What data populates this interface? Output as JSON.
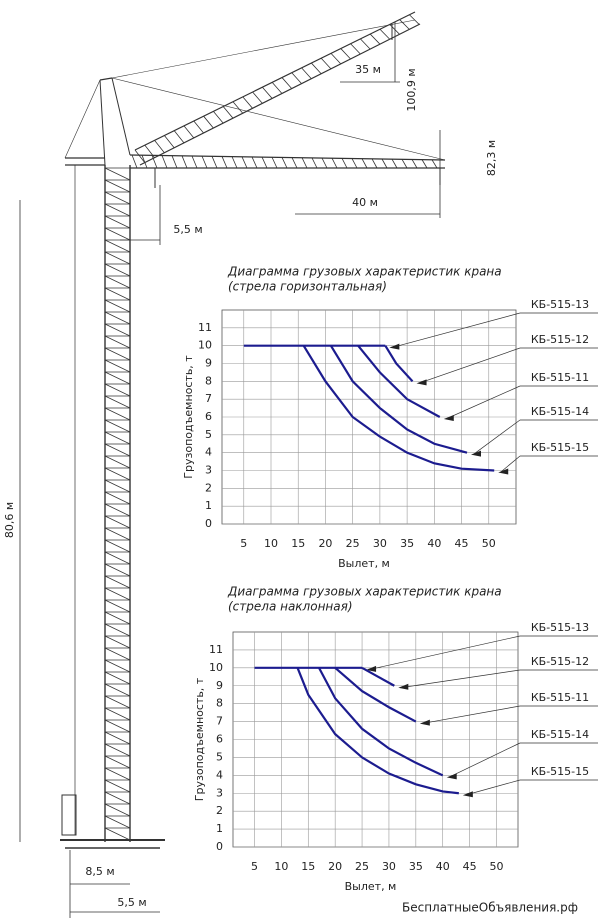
{
  "chart_data": [
    {
      "type": "line",
      "title": "Диаграмма грузовых характеристик крана",
      "subtitle": "(стрела горизонтальная)",
      "xlabel": "Вылет, м",
      "ylabel": "Грузоподъемность, т",
      "xlim": [
        1,
        55
      ],
      "ylim": [
        0,
        12
      ],
      "xticks": [
        5,
        10,
        15,
        20,
        25,
        30,
        35,
        40,
        45,
        50
      ],
      "yticks": [
        0,
        1,
        2,
        3,
        4,
        5,
        6,
        7,
        8,
        9,
        10,
        11
      ],
      "grid": true,
      "series": [
        {
          "name": "КБ-515-13",
          "color": "#1c1c8f",
          "x": [
            5,
            31
          ],
          "values": [
            10,
            10
          ]
        },
        {
          "name": "КБ-515-12",
          "color": "#1c1c8f",
          "x": [
            31,
            33,
            36
          ],
          "values": [
            10,
            9,
            8
          ]
        },
        {
          "name": "КБ-515-11",
          "color": "#1c1c8f",
          "x": [
            26,
            30,
            35,
            41
          ],
          "values": [
            10,
            8.5,
            7,
            6
          ]
        },
        {
          "name": "КБ-515-14",
          "color": "#1c1c8f",
          "x": [
            21,
            25,
            30,
            35,
            40,
            46
          ],
          "values": [
            10,
            8,
            6.5,
            5.3,
            4.5,
            4
          ]
        },
        {
          "name": "КБ-515-15",
          "color": "#1c1c8f",
          "x": [
            16,
            20,
            25,
            30,
            35,
            40,
            45,
            51
          ],
          "values": [
            10,
            8,
            6,
            4.9,
            4,
            3.4,
            3.1,
            3
          ]
        }
      ]
    },
    {
      "type": "line",
      "title": "Диаграмма грузовых характеристик крана",
      "subtitle": "(стрела наклонная)",
      "xlabel": "Вылет, м",
      "ylabel": "Грузоподъемность, т",
      "xlim": [
        1,
        54
      ],
      "ylim": [
        0,
        12
      ],
      "xticks": [
        5,
        10,
        15,
        20,
        25,
        30,
        35,
        40,
        45,
        50
      ],
      "yticks": [
        0,
        1,
        2,
        3,
        4,
        5,
        6,
        7,
        8,
        9,
        10,
        11
      ],
      "grid": true,
      "series": [
        {
          "name": "КБ-515-13",
          "color": "#1c1c8f",
          "x": [
            5,
            25
          ],
          "values": [
            10,
            10
          ]
        },
        {
          "name": "КБ-515-12",
          "color": "#1c1c8f",
          "x": [
            25,
            28,
            31
          ],
          "values": [
            10,
            9.5,
            9
          ]
        },
        {
          "name": "КБ-515-11",
          "color": "#1c1c8f",
          "x": [
            20,
            25,
            30,
            35
          ],
          "values": [
            10,
            8.7,
            7.8,
            7
          ]
        },
        {
          "name": "КБ-515-14",
          "color": "#1c1c8f",
          "x": [
            17,
            20,
            25,
            30,
            35,
            40
          ],
          "values": [
            10,
            8.3,
            6.6,
            5.5,
            4.7,
            4
          ]
        },
        {
          "name": "КБ-515-15",
          "color": "#1c1c8f",
          "x": [
            13,
            15,
            20,
            25,
            30,
            35,
            40,
            43
          ],
          "values": [
            10,
            8.5,
            6.3,
            5,
            4.1,
            3.5,
            3.1,
            3
          ]
        }
      ]
    }
  ],
  "drawing": {
    "dims": [
      "35 м",
      "100,9 м",
      "82,3 м",
      "40 м",
      "5,5 м",
      "80,6 м",
      "8,5 м",
      "5,5 м"
    ]
  },
  "watermark": "БесплатныеОбъявления.рф"
}
